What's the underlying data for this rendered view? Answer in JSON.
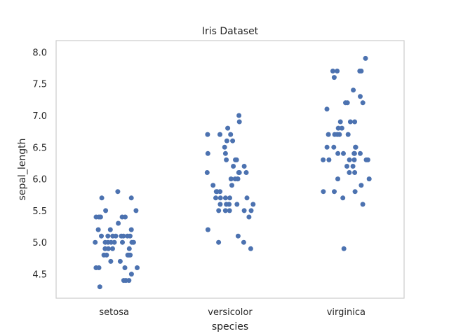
{
  "chart_data": {
    "type": "scatter",
    "subtype": "strip",
    "title": "Iris Dataset",
    "xlabel": "species",
    "ylabel": "sepal_length",
    "categories": [
      "setosa",
      "versicolor",
      "virginica"
    ],
    "ylim": [
      4.12,
      8.18
    ],
    "yticks": [
      "4.5",
      "5.0",
      "5.5",
      "6.0",
      "6.5",
      "7.0",
      "7.5",
      "8.0"
    ],
    "grid": false,
    "point_color": "#4c72b0",
    "series": [
      {
        "category": "setosa",
        "values": [
          5.1,
          4.9,
          4.7,
          4.6,
          5.0,
          5.4,
          4.6,
          5.0,
          4.4,
          4.9,
          5.4,
          4.8,
          4.8,
          4.3,
          5.8,
          5.7,
          5.4,
          5.1,
          5.7,
          5.1,
          5.4,
          5.1,
          4.6,
          5.1,
          4.8,
          5.0,
          5.0,
          5.2,
          5.2,
          4.7,
          4.8,
          5.4,
          5.2,
          5.5,
          4.9,
          5.0,
          5.5,
          4.9,
          4.4,
          5.1,
          5.0,
          4.5,
          4.4,
          5.0,
          5.1,
          4.8,
          5.1,
          4.6,
          5.3,
          5.0
        ]
      },
      {
        "category": "versicolor",
        "values": [
          7.0,
          6.4,
          6.9,
          5.5,
          6.5,
          5.7,
          6.3,
          4.9,
          6.6,
          5.2,
          5.0,
          5.9,
          6.0,
          6.1,
          5.6,
          6.7,
          5.6,
          5.8,
          6.2,
          5.6,
          5.9,
          6.1,
          6.3,
          6.1,
          6.4,
          6.6,
          6.8,
          6.7,
          6.0,
          5.7,
          5.5,
          5.5,
          5.8,
          6.0,
          5.4,
          6.0,
          6.7,
          6.3,
          5.6,
          5.5,
          5.5,
          6.1,
          5.8,
          5.0,
          5.6,
          5.7,
          5.7,
          6.2,
          5.1,
          5.7
        ]
      },
      {
        "category": "virginica",
        "values": [
          6.3,
          5.8,
          7.1,
          6.3,
          6.5,
          7.6,
          4.9,
          7.3,
          6.7,
          7.2,
          6.5,
          6.4,
          6.8,
          5.7,
          5.8,
          6.4,
          6.5,
          7.7,
          7.7,
          6.0,
          6.9,
          5.6,
          7.7,
          6.3,
          6.7,
          7.2,
          6.2,
          6.1,
          6.4,
          7.2,
          7.4,
          7.9,
          6.4,
          6.3,
          6.1,
          7.7,
          6.3,
          6.4,
          6.0,
          6.9,
          6.7,
          6.9,
          5.8,
          6.8,
          6.7,
          6.7,
          6.3,
          6.5,
          6.2,
          5.9
        ]
      }
    ]
  }
}
